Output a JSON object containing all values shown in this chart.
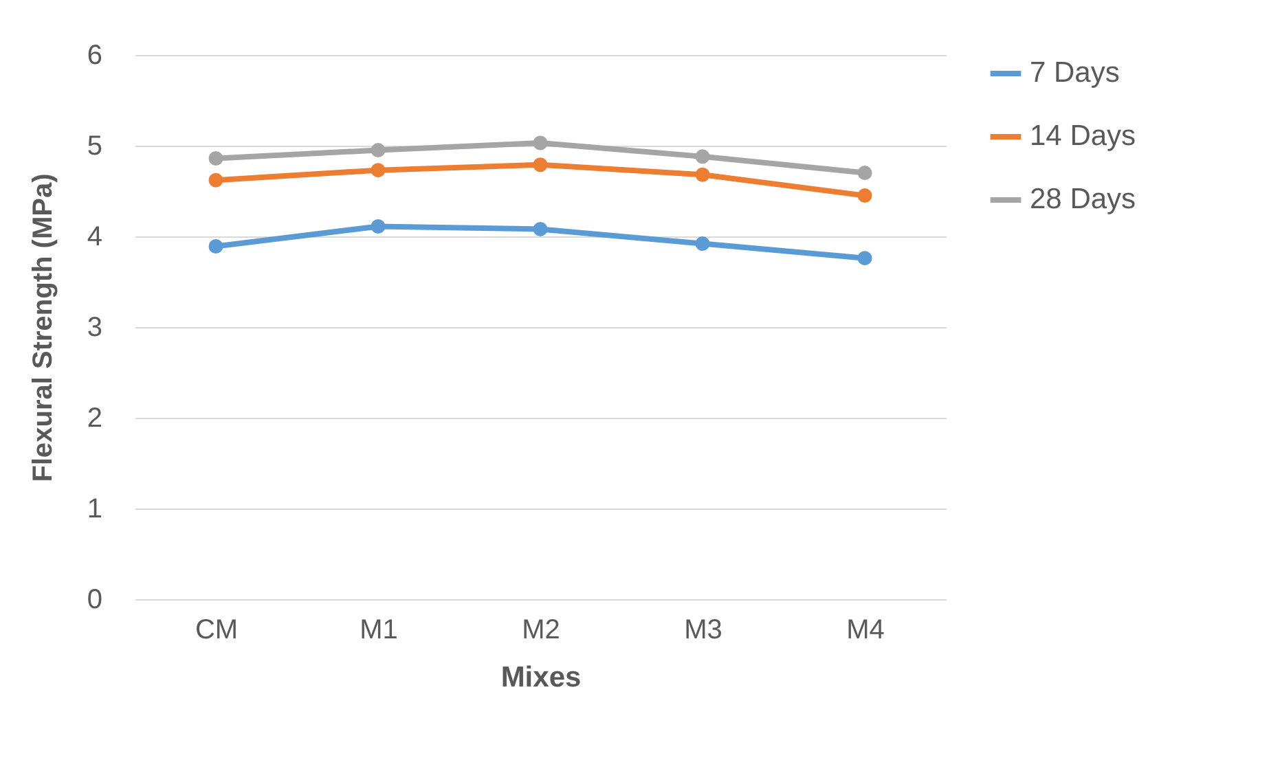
{
  "chart_data": {
    "type": "line",
    "xlabel": "Mixes",
    "ylabel": "Flexural Strength (MPa)",
    "categories": [
      "CM",
      "M1",
      "M2",
      "M3",
      "M4"
    ],
    "series": [
      {
        "name": "7 Days",
        "color": "#5b9bd5",
        "values": [
          3.89,
          4.11,
          4.08,
          3.92,
          3.76
        ]
      },
      {
        "name": "14 Days",
        "color": "#ed7d31",
        "values": [
          4.62,
          4.73,
          4.79,
          4.68,
          4.45
        ]
      },
      {
        "name": "28 Days",
        "color": "#a5a5a5",
        "values": [
          4.86,
          4.95,
          5.03,
          4.88,
          4.7
        ]
      }
    ],
    "ylim": [
      0,
      6
    ],
    "yticks": [
      0,
      1,
      2,
      3,
      4,
      5,
      6
    ],
    "grid": "y",
    "legend": "right",
    "marker": "circle",
    "line_style": "solid"
  }
}
